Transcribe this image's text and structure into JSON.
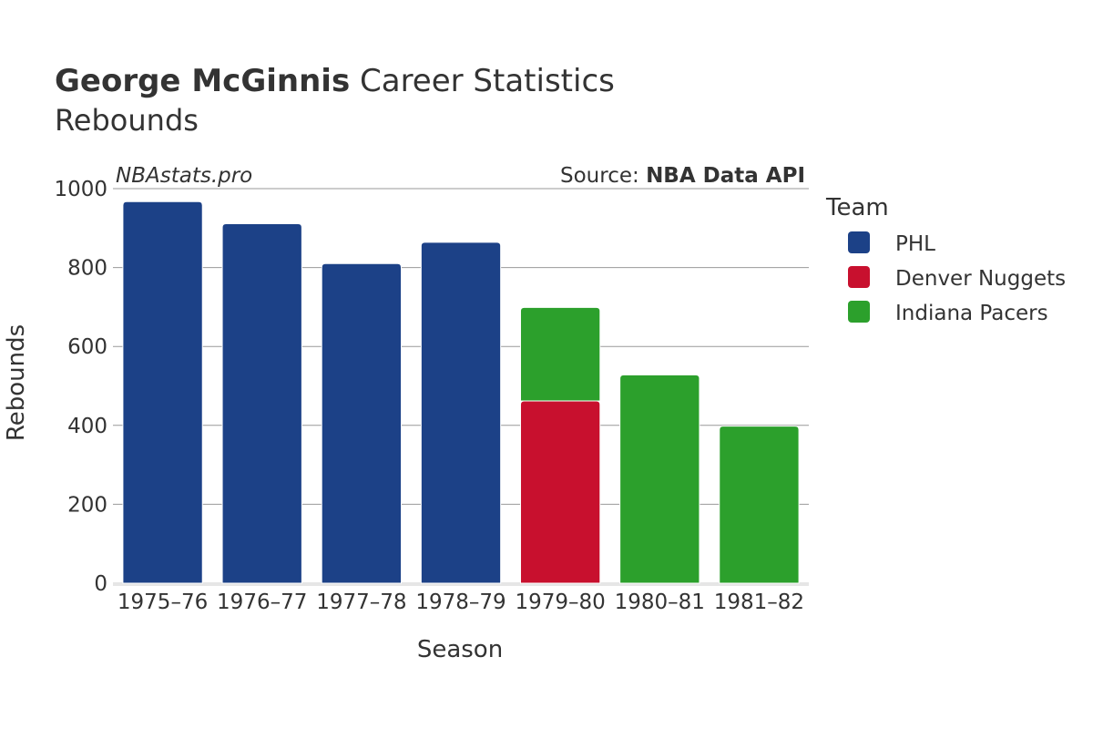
{
  "chart_data": {
    "type": "bar",
    "stacked": true,
    "title": "George McGinnis Career Statistics",
    "title_bold_part": "George McGinnis",
    "title_rest": " Career Statistics",
    "subtitle": "Rebounds",
    "watermark": "NBAstats.pro",
    "source_prefix": "Source: ",
    "source_name": "NBA Data API",
    "xlabel": "Season",
    "ylabel": "Rebounds",
    "ylim": [
      0,
      1000
    ],
    "yticks": [
      0,
      200,
      400,
      600,
      800,
      1000
    ],
    "grid": true,
    "legend": {
      "title": "Team",
      "placement": "right"
    },
    "categories": [
      "1975–76",
      "1976–77",
      "1977–78",
      "1978–79",
      "1979–80",
      "1980–81",
      "1981–82"
    ],
    "series": [
      {
        "name": "PHL",
        "color": "#1c4187",
        "values": [
          967,
          911,
          810,
          864,
          0,
          0,
          0
        ]
      },
      {
        "name": "Denver Nuggets",
        "color": "#c8102e",
        "values": [
          0,
          0,
          0,
          0,
          462,
          0,
          0
        ]
      },
      {
        "name": "Indiana Pacers",
        "color": "#2ca02c",
        "values": [
          0,
          0,
          0,
          0,
          237,
          528,
          398
        ]
      }
    ]
  }
}
